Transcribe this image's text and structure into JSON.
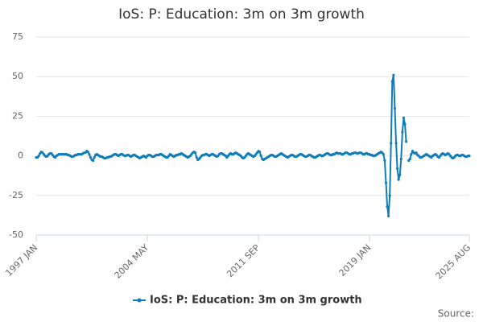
{
  "chart_data": {
    "type": "line",
    "title": "IoS: P: Education: 3m on 3m growth",
    "source": "Source:",
    "categories": [
      "1997 JAN",
      null,
      null,
      null,
      null,
      null,
      null,
      null,
      null,
      null,
      null,
      null,
      null,
      null,
      null,
      null,
      null,
      null,
      null,
      null,
      null,
      null,
      null,
      null,
      null,
      null,
      null,
      null,
      null,
      null,
      null,
      null,
      null,
      null,
      null,
      null,
      null,
      null,
      null,
      null,
      null,
      null,
      null,
      null,
      null,
      null,
      null,
      null,
      null,
      null,
      null,
      null,
      null,
      null,
      null,
      null,
      null,
      null,
      null,
      null,
      null,
      null,
      null,
      null,
      null,
      null,
      null,
      null,
      null,
      null,
      null,
      null,
      null,
      null,
      null,
      null,
      null,
      null,
      null,
      null,
      null,
      null,
      null,
      null,
      null,
      null,
      null,
      null,
      "2004 MAY",
      null,
      null,
      null,
      null,
      null,
      null,
      null,
      null,
      null,
      null,
      null,
      null,
      null,
      null,
      null,
      null,
      null,
      null,
      null,
      null,
      null,
      null,
      null,
      null,
      null,
      null,
      null,
      null,
      null,
      null,
      null,
      null,
      null,
      null,
      null,
      null,
      null,
      null,
      null,
      null,
      null,
      null,
      null,
      null,
      null,
      null,
      null,
      null,
      null,
      null,
      null,
      null,
      null,
      null,
      null,
      null,
      null,
      null,
      null,
      null,
      null,
      null,
      null,
      null,
      null,
      null,
      null,
      null,
      null,
      null,
      null,
      null,
      null,
      null,
      null,
      null,
      null,
      null,
      null,
      null,
      null,
      null,
      null,
      null,
      null,
      null,
      null,
      "2011 SEP",
      null,
      null,
      null,
      null,
      null,
      null,
      null,
      null,
      null,
      null,
      null,
      null,
      null,
      null,
      null,
      null,
      null,
      null,
      null,
      null,
      null,
      null,
      null,
      null,
      null,
      null,
      null,
      null,
      null,
      null,
      null,
      null,
      null,
      null,
      null,
      null,
      null,
      null,
      null,
      null,
      null,
      null,
      null,
      null,
      null,
      null,
      null,
      null,
      null,
      null,
      null,
      null,
      null,
      null,
      null,
      null,
      null,
      null,
      null,
      null,
      null,
      null,
      null,
      null,
      null,
      null,
      null,
      null,
      null,
      null,
      null,
      null,
      null,
      null,
      null,
      null,
      null,
      null,
      null,
      null,
      null,
      null,
      null,
      null,
      null,
      null,
      null,
      "2019 JAN",
      null,
      null,
      null,
      null,
      null,
      null,
      null,
      null,
      null,
      null,
      null,
      null,
      null,
      null,
      null,
      null,
      null,
      null,
      null,
      null,
      null,
      null,
      null,
      null,
      null,
      null,
      null,
      null,
      null,
      null,
      null,
      null,
      null,
      null,
      null,
      null,
      null,
      null,
      null,
      null,
      null,
      null,
      null,
      null,
      null,
      null,
      null,
      null,
      null,
      null,
      null,
      null,
      null,
      null,
      null,
      null,
      null,
      null,
      null,
      null,
      null,
      null,
      null,
      null,
      null,
      null,
      null,
      null,
      null,
      null,
      null,
      null,
      null,
      null,
      null,
      null,
      null,
      null,
      "2025 AUG"
    ],
    "series": [
      {
        "name": "IoS: P: Education: 3m on 3m growth",
        "color": "#0f7dbb",
        "values": [
          -1,
          -1,
          0,
          1.5,
          2.5,
          2,
          1,
          0,
          -0.5,
          0,
          1,
          1.5,
          1.5,
          0.5,
          -0.5,
          -1,
          0,
          0.5,
          1,
          1,
          1,
          1,
          1,
          1,
          1,
          0.5,
          0.5,
          0,
          -0.5,
          -0.5,
          0,
          0.5,
          0.5,
          1,
          1,
          1,
          1,
          1.5,
          2,
          2,
          3,
          2.5,
          1,
          -1,
          -2.5,
          -3,
          -1,
          0.5,
          1,
          0.5,
          0,
          -0.5,
          -0.5,
          -1,
          -1.5,
          -1.5,
          -1,
          -1,
          -0.5,
          -0.5,
          0,
          0.5,
          1,
          1,
          0.5,
          0,
          0.5,
          1,
          1,
          0.5,
          0,
          0,
          0.5,
          0.5,
          0,
          -0.5,
          0,
          0.5,
          0.5,
          0,
          -0.5,
          -1,
          -1.5,
          -1,
          -0.5,
          0,
          -0.5,
          -1,
          0,
          0.5,
          0.5,
          0,
          -0.5,
          -0.5,
          0,
          0.5,
          0.5,
          0.5,
          1,
          1,
          0.5,
          0,
          -0.5,
          -1,
          -1,
          0,
          1,
          0.5,
          0,
          -0.5,
          0,
          0.5,
          0.5,
          1,
          1,
          1.5,
          1,
          0.5,
          0,
          -0.5,
          -1,
          -0.5,
          0,
          1,
          2,
          2.5,
          2,
          -1,
          -2.5,
          -2,
          -1,
          0,
          0.5,
          0.5,
          1,
          1,
          0.5,
          0,
          0.5,
          1,
          1,
          0.5,
          0,
          -0.5,
          0,
          1,
          1.5,
          1.5,
          1,
          0.5,
          0,
          -1,
          0,
          1,
          1.5,
          1,
          1,
          1.5,
          2,
          1.5,
          1,
          0.5,
          0,
          -1,
          -1.5,
          -1,
          0,
          1,
          1.5,
          1,
          0.5,
          0,
          -0.5,
          0,
          1,
          2,
          3,
          2.5,
          0,
          -2,
          -2.5,
          -2,
          -1.5,
          -1,
          -0.5,
          0,
          0.5,
          0.5,
          0,
          -0.5,
          -0.5,
          0,
          0.5,
          1,
          1.5,
          1,
          0.5,
          0,
          -0.5,
          -1,
          -0.5,
          0,
          0.5,
          0.5,
          0,
          -0.5,
          -0.5,
          0,
          0.5,
          1,
          1,
          0.5,
          0,
          -0.5,
          -0.5,
          0,
          0.5,
          0.5,
          0,
          -0.5,
          -1,
          -1,
          -0.5,
          0,
          0.5,
          0.5,
          0,
          0,
          0.5,
          1,
          1.5,
          1.5,
          1,
          0.5,
          0.5,
          1,
          1,
          1.5,
          2,
          1.5,
          1.5,
          1.5,
          1,
          1,
          1.5,
          2,
          2,
          1.5,
          1,
          1,
          1.5,
          1.5,
          2,
          2,
          1.5,
          1.5,
          2,
          2,
          1.5,
          1,
          1,
          1.5,
          1.5,
          1,
          1,
          0.5,
          0.5,
          0,
          0,
          0.5,
          1,
          1.5,
          2,
          2.5,
          2,
          1,
          -3,
          -17,
          -32,
          -38,
          -25,
          8,
          47,
          51,
          30,
          8,
          -8,
          -15,
          -12,
          -2,
          15,
          24,
          20,
          9,
          null,
          -3,
          -2,
          1,
          3,
          2,
          1.5,
          2,
          0.5,
          0,
          -1,
          -1,
          -0.5,
          0,
          0.5,
          1,
          0.5,
          0,
          -0.5,
          -1,
          0,
          0.5,
          1,
          0.5,
          -0.5,
          -1,
          0,
          1,
          1.5,
          1,
          0.5,
          1,
          1.5,
          1,
          0,
          -1,
          -1.5,
          -1,
          0,
          0.5,
          0.5,
          0,
          0,
          0.5,
          0.5,
          0,
          -0.5,
          -0.5,
          0,
          0
        ]
      }
    ],
    "ylim": [
      -50,
      75
    ],
    "yticks": [
      -50,
      -25,
      0,
      25,
      50,
      75
    ],
    "grid": true
  }
}
